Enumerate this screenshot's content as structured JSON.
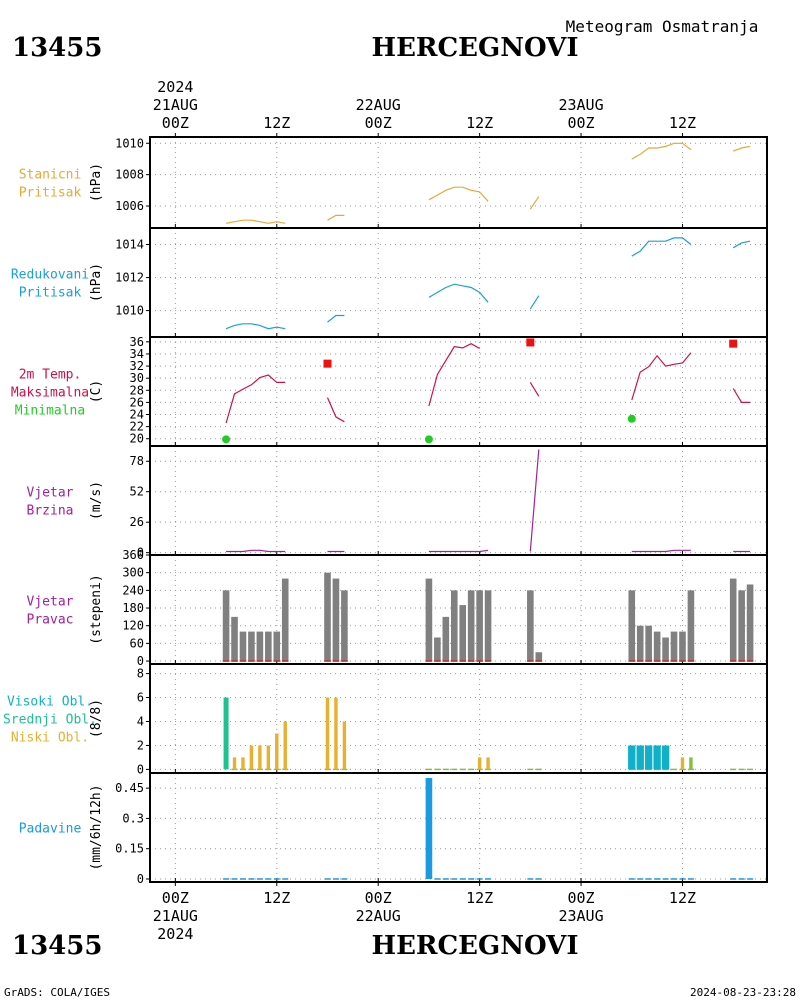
{
  "header": {
    "station_id": "13455",
    "station_name": "HERCEGNOVI",
    "subtitle": "Meteogram Osmatranja"
  },
  "footer": {
    "station_id": "13455",
    "station_name": "HERCEGNOVI",
    "credit": "GrADS: COLA/IGES",
    "timestamp": "2024-08-23-23:28"
  },
  "time_axis": {
    "year_label": "2024",
    "ticks": [
      {
        "hour": 0,
        "label": "00Z",
        "date": "21AUG",
        "year": "2024"
      },
      {
        "hour": 12,
        "label": "12Z"
      },
      {
        "hour": 24,
        "label": "00Z",
        "date": "22AUG"
      },
      {
        "hour": 36,
        "label": "12Z"
      },
      {
        "hour": 48,
        "label": "00Z",
        "date": "23AUG"
      },
      {
        "hour": 60,
        "label": "12Z"
      }
    ],
    "range_hours": [
      -3,
      70
    ]
  },
  "colors": {
    "station_pressure": "#e8a838",
    "reduced_pressure": "#1aa0d8",
    "temp": "#d0104a",
    "tmax": "#ee1111",
    "tmin": "#22cc22",
    "wind": "#a020a0",
    "wind_dir_bar": "#808080",
    "wind_dir_base": "#cc2222",
    "cloud_high": "#10b0c8",
    "cloud_mid": "#20c090",
    "cloud_low": "#e8b030",
    "cloud_low_green": "#80c040",
    "precip": "#1a9ae0"
  },
  "chart_data": [
    {
      "type": "line",
      "panel_label": [
        "Stanicni",
        "Pritisak"
      ],
      "ylabel": "(hPa)",
      "yticks": [
        1006,
        1008,
        1010
      ],
      "ylim": [
        1004.6,
        1010.4
      ],
      "series": [
        {
          "color_key": "station_pressure",
          "segments": [
            {
              "x": [
                6,
                7,
                8,
                9,
                10,
                11,
                12,
                13
              ],
              "y": [
                1004.9,
                1005.0,
                1005.1,
                1005.1,
                1005.0,
                1004.9,
                1005.0,
                1004.9
              ]
            },
            {
              "x": [
                18,
                19,
                20
              ],
              "y": [
                1005.1,
                1005.4,
                1005.4
              ]
            },
            {
              "x": [
                30,
                31,
                32,
                33,
                34,
                35,
                36,
                37
              ],
              "y": [
                1006.4,
                1006.7,
                1007.0,
                1007.2,
                1007.2,
                1007.0,
                1006.9,
                1006.3
              ]
            },
            {
              "x": [
                42,
                43
              ],
              "y": [
                1005.8,
                1006.6
              ]
            },
            {
              "x": [
                54,
                55,
                56,
                57,
                58,
                59,
                60,
                61
              ],
              "y": [
                1009.0,
                1009.3,
                1009.7,
                1009.7,
                1009.8,
                1010.0,
                1010.0,
                1009.6
              ]
            },
            {
              "x": [
                66,
                67,
                68
              ],
              "y": [
                1009.5,
                1009.7,
                1009.8
              ]
            }
          ]
        }
      ]
    },
    {
      "type": "line",
      "panel_label": [
        "Redukovani",
        "Pritisak"
      ],
      "ylabel": "(hPa)",
      "yticks": [
        1010,
        1012,
        1014
      ],
      "ylim": [
        1008.4,
        1015.0
      ],
      "series": [
        {
          "color_key": "reduced_pressure",
          "segments": [
            {
              "x": [
                6,
                7,
                8,
                9,
                10,
                11,
                12,
                13
              ],
              "y": [
                1008.9,
                1009.1,
                1009.2,
                1009.2,
                1009.1,
                1008.9,
                1009.0,
                1008.9
              ]
            },
            {
              "x": [
                18,
                19,
                20
              ],
              "y": [
                1009.3,
                1009.7,
                1009.7
              ]
            },
            {
              "x": [
                30,
                31,
                32,
                33,
                34,
                35,
                36,
                37
              ],
              "y": [
                1010.8,
                1011.1,
                1011.4,
                1011.6,
                1011.5,
                1011.4,
                1011.1,
                1010.5
              ]
            },
            {
              "x": [
                42,
                43
              ],
              "y": [
                1010.1,
                1010.9
              ]
            },
            {
              "x": [
                54,
                55,
                56,
                57,
                58,
                59,
                60,
                61
              ],
              "y": [
                1013.3,
                1013.6,
                1014.2,
                1014.2,
                1014.2,
                1014.4,
                1014.4,
                1014.0
              ]
            },
            {
              "x": [
                66,
                67,
                68
              ],
              "y": [
                1013.8,
                1014.1,
                1014.2
              ]
            }
          ]
        }
      ]
    },
    {
      "type": "line",
      "panel_label": [
        "2m Temp.",
        "Maksimalna",
        "Minimalna"
      ],
      "label_color_keys": [
        "temp",
        "temp",
        "tmin"
      ],
      "ylabel": "(C)",
      "yticks": [
        20,
        22,
        24,
        26,
        28,
        30,
        32,
        34,
        36
      ],
      "ylim": [
        18.8,
        36.8
      ],
      "series": [
        {
          "color_key": "temp",
          "segments": [
            {
              "x": [
                6,
                7,
                8,
                9,
                10,
                11,
                12,
                13
              ],
              "y": [
                22.6,
                27.4,
                28.2,
                28.9,
                30.1,
                30.5,
                29.3,
                29.3
              ]
            },
            {
              "x": [
                18,
                19,
                20
              ],
              "y": [
                26.8,
                23.6,
                22.8
              ]
            },
            {
              "x": [
                30,
                31,
                32,
                33,
                34,
                35,
                36
              ],
              "y": [
                25.4,
                30.6,
                32.9,
                35.2,
                35.0,
                35.7,
                34.9
              ]
            },
            {
              "x": [
                42,
                43
              ],
              "y": [
                29.3,
                27.0
              ]
            },
            {
              "x": [
                54,
                55,
                56,
                57,
                58,
                59,
                60,
                61
              ],
              "y": [
                26.4,
                31.0,
                31.9,
                33.7,
                32.0,
                32.3,
                32.5,
                34.2
              ]
            },
            {
              "x": [
                66,
                67,
                68
              ],
              "y": [
                28.3,
                26.0,
                26.0
              ]
            }
          ]
        }
      ],
      "tmax_points": [
        {
          "x": 18,
          "y": 32.4
        },
        {
          "x": 42,
          "y": 35.9
        },
        {
          "x": 66,
          "y": 35.7
        }
      ],
      "tmin_points": [
        {
          "x": 6,
          "y": 19.9
        },
        {
          "x": 30,
          "y": 19.9
        },
        {
          "x": 54,
          "y": 23.3
        }
      ]
    },
    {
      "type": "line",
      "panel_label": [
        "Vjetar",
        "Brzina"
      ],
      "ylabel": "(m/s)",
      "yticks": [
        0,
        26,
        52,
        78
      ],
      "ylim": [
        -2,
        91
      ],
      "series": [
        {
          "color_key": "wind",
          "segments": [
            {
              "x": [
                6,
                7,
                8,
                9,
                10,
                11,
                12,
                13
              ],
              "y": [
                1,
                1,
                1,
                2,
                2,
                1,
                1,
                1
              ]
            },
            {
              "x": [
                18,
                19,
                20
              ],
              "y": [
                1,
                1,
                1
              ]
            },
            {
              "x": [
                30,
                31,
                32,
                33,
                34,
                35,
                36,
                37
              ],
              "y": [
                1,
                1,
                1,
                1,
                1,
                1,
                1,
                2
              ]
            },
            {
              "x": [
                42,
                43
              ],
              "y": [
                1,
                88
              ]
            },
            {
              "x": [
                54,
                55,
                56,
                57,
                58,
                59,
                60,
                61
              ],
              "y": [
                1,
                1,
                1,
                1,
                1,
                2,
                2,
                2
              ]
            },
            {
              "x": [
                66,
                67,
                68
              ],
              "y": [
                1,
                1,
                1
              ]
            }
          ]
        }
      ]
    },
    {
      "type": "bar",
      "panel_label": [
        "Vjetar",
        "Pravac"
      ],
      "ylabel": "(stepeni)",
      "yticks": [
        0,
        60,
        120,
        180,
        240,
        300,
        360
      ],
      "ylim": [
        -10,
        360
      ],
      "x": [
        6,
        7,
        8,
        9,
        10,
        11,
        12,
        13,
        18,
        19,
        20,
        30,
        31,
        32,
        33,
        34,
        35,
        36,
        37,
        42,
        43,
        54,
        55,
        56,
        57,
        58,
        59,
        60,
        61,
        66,
        67,
        68
      ],
      "values": [
        240,
        150,
        100,
        100,
        100,
        100,
        100,
        280,
        300,
        280,
        240,
        280,
        80,
        150,
        240,
        190,
        240,
        240,
        240,
        240,
        30,
        240,
        120,
        120,
        100,
        80,
        100,
        100,
        240,
        280,
        240,
        260
      ]
    },
    {
      "type": "bar",
      "panel_label": [
        "Visoki Obl.",
        "Srednji Obl.",
        "Niski Obl."
      ],
      "label_color_keys": [
        "cloud_high",
        "cloud_mid",
        "cloud_low"
      ],
      "ylabel": "(8/8)",
      "yticks": [
        0,
        2,
        4,
        6,
        8
      ],
      "ylim": [
        -0.3,
        8.8
      ],
      "bars": [
        {
          "x": 6,
          "v": 6,
          "c": "cloud_mid"
        },
        {
          "x": 7,
          "v": 1,
          "c": "cloud_low"
        },
        {
          "x": 8,
          "v": 1,
          "c": "cloud_low"
        },
        {
          "x": 9,
          "v": 2,
          "c": "cloud_low"
        },
        {
          "x": 10,
          "v": 2,
          "c": "cloud_low"
        },
        {
          "x": 11,
          "v": 2,
          "c": "cloud_low"
        },
        {
          "x": 12,
          "v": 3,
          "c": "cloud_low"
        },
        {
          "x": 13,
          "v": 4,
          "c": "cloud_low"
        },
        {
          "x": 18,
          "v": 6,
          "c": "cloud_low"
        },
        {
          "x": 19,
          "v": 6,
          "c": "cloud_low"
        },
        {
          "x": 20,
          "v": 4,
          "c": "cloud_low"
        },
        {
          "x": 36,
          "v": 1,
          "c": "cloud_low"
        },
        {
          "x": 37,
          "v": 1,
          "c": "cloud_low"
        },
        {
          "x": 54,
          "v": 2,
          "c": "cloud_high"
        },
        {
          "x": 55,
          "v": 2,
          "c": "cloud_high"
        },
        {
          "x": 56,
          "v": 2,
          "c": "cloud_high"
        },
        {
          "x": 57,
          "v": 2,
          "c": "cloud_high"
        },
        {
          "x": 58,
          "v": 2,
          "c": "cloud_high"
        },
        {
          "x": 60,
          "v": 1,
          "c": "cloud_low"
        },
        {
          "x": 61,
          "v": 1,
          "c": "cloud_low_green"
        }
      ],
      "zero_x": [
        7,
        8,
        9,
        10,
        11,
        12,
        13,
        18,
        19,
        20,
        30,
        31,
        32,
        33,
        34,
        35,
        36,
        37,
        42,
        43,
        54,
        55,
        56,
        57,
        58,
        59,
        60,
        61,
        66,
        67,
        68
      ]
    },
    {
      "type": "bar",
      "panel_label": [
        "Padavine"
      ],
      "ylabel": "(mm/6h/12h)",
      "yticks": [
        0,
        0.15,
        0.3,
        0.45
      ],
      "ylim": [
        -0.015,
        0.525
      ],
      "x": [
        6,
        7,
        8,
        9,
        10,
        11,
        12,
        13,
        18,
        19,
        20,
        30,
        31,
        32,
        33,
        34,
        35,
        36,
        37,
        42,
        43,
        54,
        55,
        56,
        57,
        58,
        59,
        60,
        61,
        66,
        67,
        68
      ],
      "values": [
        0,
        0,
        0,
        0,
        0,
        0,
        0,
        0,
        0,
        0,
        0,
        0.5,
        0,
        0,
        0,
        0,
        0,
        0,
        0,
        0,
        0,
        0,
        0,
        0,
        0,
        0,
        0,
        0,
        0,
        0,
        0,
        0
      ]
    }
  ]
}
